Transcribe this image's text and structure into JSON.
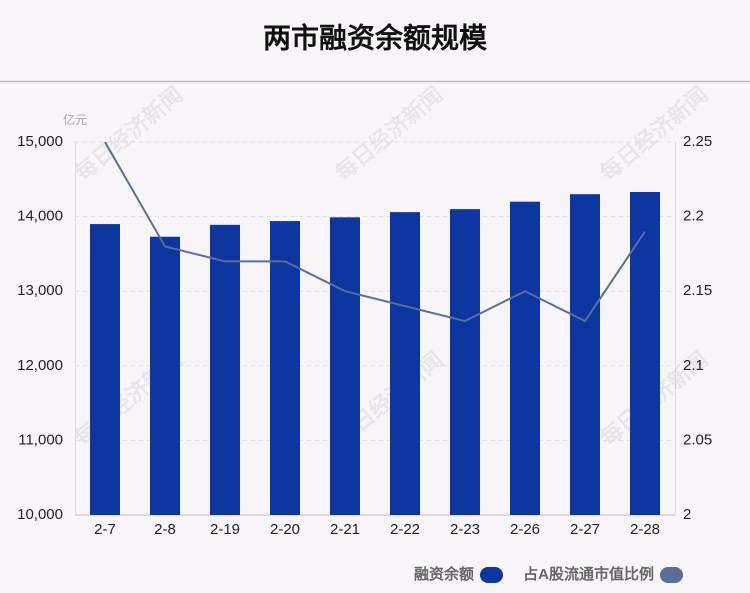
{
  "chart_data": {
    "type": "bar_line",
    "title": "两市融资余额规模",
    "y_unit": "亿元",
    "watermark": "每日经济新闻",
    "categories": [
      "2-7",
      "2-8",
      "2-19",
      "2-20",
      "2-21",
      "2-22",
      "2-23",
      "2-26",
      "2-27",
      "2-28"
    ],
    "series": [
      {
        "name": "融资余额",
        "type": "bar",
        "color": "#0d36a0",
        "axis": "y",
        "values": [
          13900,
          13730,
          13890,
          13940,
          13990,
          14060,
          14100,
          14200,
          14300,
          14330
        ]
      },
      {
        "name": "占A股流通市值比例",
        "type": "line",
        "color": "#5a6e9a",
        "axis": "y2",
        "values": [
          2.25,
          2.18,
          2.17,
          2.17,
          2.15,
          2.14,
          2.13,
          2.15,
          2.13,
          2.19
        ]
      }
    ],
    "ylim": [
      10000,
      15000
    ],
    "yticks": [
      {
        "value": 10000,
        "label": "10,000"
      },
      {
        "value": 11000,
        "label": "11,000"
      },
      {
        "value": 12000,
        "label": "12,000"
      },
      {
        "value": 13000,
        "label": "13,000"
      },
      {
        "value": 14000,
        "label": "14,000"
      },
      {
        "value": 15000,
        "label": "15,000"
      }
    ],
    "y2lim": [
      2,
      2.25
    ],
    "y2ticks": [
      2,
      2.05,
      2.1,
      2.15,
      2.2,
      2.25
    ],
    "grid": true,
    "legend": "bottom-right"
  }
}
